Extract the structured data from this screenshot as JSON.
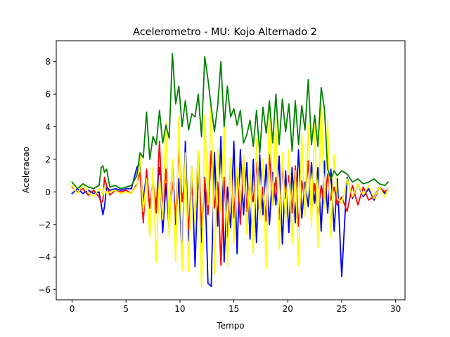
{
  "chart_data": {
    "type": "line",
    "title": "Acelerometro - MU: Kojo Alternado 2",
    "xlabel": "Tempo",
    "ylabel": "Aceleracao",
    "xlim": [
      -1.47,
      30.87
    ],
    "ylim": [
      -6.62,
      9.28
    ],
    "xticks": [
      "0",
      "5",
      "10",
      "15",
      "20",
      "25",
      "30"
    ],
    "yticks": [
      "−6",
      "−4",
      "−2",
      "0",
      "2",
      "4",
      "6",
      "8"
    ],
    "grid": false,
    "legend": "none",
    "series": [
      {
        "color": "#0000ff",
        "x": [
          0,
          0.5,
          1,
          1.5,
          2,
          2.5,
          2.7,
          2.85,
          3,
          3.2,
          3.5,
          4,
          4.5,
          5,
          5.5,
          6,
          6.3,
          6.6,
          6.9,
          7.2,
          7.5,
          7.8,
          8.1,
          8.4,
          8.7,
          9.0,
          9.3,
          9.6,
          9.9,
          10.2,
          10.5,
          10.8,
          11.1,
          11.4,
          11.7,
          12.0,
          12.3,
          12.6,
          12.9,
          13.2,
          13.5,
          13.8,
          14.1,
          14.4,
          14.7,
          15.0,
          15.3,
          15.6,
          15.9,
          16.2,
          16.5,
          16.8,
          17.1,
          17.4,
          17.7,
          18.0,
          18.3,
          18.6,
          18.9,
          19.2,
          19.5,
          19.8,
          20.1,
          20.4,
          20.7,
          21.0,
          21.3,
          21.6,
          21.9,
          22.2,
          22.5,
          22.8,
          23.1,
          23.4,
          23.7,
          24.0,
          24.3,
          24.6,
          25.0,
          25.5,
          26,
          26.5,
          27,
          27.5,
          28,
          28.5,
          29,
          29.3
        ],
        "y": [
          -0.1,
          0.2,
          -0.1,
          0.1,
          -0.1,
          0.0,
          -0.8,
          -1.4,
          -0.9,
          0.3,
          0.1,
          0.2,
          0.1,
          0.2,
          0.2,
          1.5,
          1.8,
          -0.6,
          1.2,
          -1.0,
          0.6,
          -0.9,
          1.5,
          -2.5,
          0.5,
          -2.3,
          1.9,
          -2.0,
          0.8,
          -4.2,
          3.1,
          -3.0,
          1.6,
          -4.6,
          1.3,
          -3.1,
          0.9,
          -5.6,
          -5.8,
          2.4,
          -2.1,
          3.4,
          -4.3,
          0.3,
          -2.2,
          3.1,
          -3.8,
          2.6,
          -1.4,
          1.8,
          -2.9,
          2.0,
          -3.1,
          2.3,
          -1.4,
          1.7,
          -2.0,
          1.2,
          -0.8,
          2.2,
          -3.2,
          1.3,
          -2.5,
          1.5,
          -1.9,
          2.6,
          -1.6,
          0.6,
          -0.9,
          1.8,
          -0.7,
          1.5,
          -2.4,
          1.9,
          -1.3,
          1.4,
          -2.4,
          0.8,
          -5.2,
          0.9,
          -0.4,
          0.5,
          -0.3,
          0.2,
          -0.5,
          0.3,
          -0.1,
          0.2
        ]
      },
      {
        "color": "#ff0000",
        "x": [
          0,
          0.5,
          1,
          1.5,
          2,
          2.5,
          2.7,
          2.85,
          3,
          3.2,
          3.5,
          4,
          4.5,
          5,
          5.5,
          6,
          6.3,
          6.6,
          6.9,
          7.2,
          7.5,
          7.8,
          8.1,
          8.4,
          8.7,
          9.0,
          9.3,
          9.6,
          9.9,
          10.2,
          10.5,
          10.8,
          11.1,
          11.4,
          11.7,
          12.0,
          12.3,
          12.6,
          12.9,
          13.2,
          13.5,
          13.8,
          14.1,
          14.4,
          14.7,
          15.0,
          15.3,
          15.6,
          15.9,
          16.2,
          16.5,
          16.8,
          17.1,
          17.4,
          17.7,
          18.0,
          18.3,
          18.6,
          18.9,
          19.2,
          19.5,
          19.8,
          20.1,
          20.4,
          20.7,
          21.0,
          21.3,
          21.6,
          21.9,
          22.2,
          22.5,
          22.8,
          23.1,
          23.4,
          23.7,
          24.0,
          24.3,
          24.6,
          25.0,
          25.5,
          26,
          26.5,
          27,
          27.5,
          28,
          28.5,
          29,
          29.3
        ],
        "y": [
          0.3,
          0.0,
          0.2,
          -0.2,
          0.1,
          -0.3,
          -0.7,
          -0.5,
          0.9,
          0.4,
          -0.2,
          0.1,
          0.0,
          0.1,
          -0.1,
          0.5,
          1.2,
          -1.9,
          1.4,
          -1.0,
          0.8,
          -1.3,
          3.1,
          -1.2,
          1.4,
          -1.8,
          0.6,
          -1.6,
          2.6,
          -0.6,
          1.1,
          -2.3,
          0.4,
          -1.6,
          2.5,
          -2.1,
          0.8,
          -1.4,
          2.5,
          -1.0,
          0.6,
          -4.5,
          0.9,
          -2.8,
          1.9,
          -1.6,
          1.4,
          -2.0,
          2.2,
          -1.2,
          0.4,
          -0.6,
          1.8,
          -1.5,
          0.3,
          -1.8,
          2.3,
          -0.8,
          0.9,
          -1.7,
          1.4,
          -0.4,
          1.0,
          -1.3,
          1.6,
          -2.1,
          0.7,
          -0.6,
          1.9,
          -1.2,
          0.5,
          -1.4,
          0.4,
          -0.9,
          1.1,
          -0.5,
          0.3,
          -0.8,
          -0.3,
          -1.2,
          0.4,
          -0.8,
          0.3,
          -0.5,
          -0.3,
          0.3,
          0.0,
          0.2
        ]
      },
      {
        "color": "#ffff00",
        "x": [
          0,
          0.5,
          1,
          1.5,
          2,
          2.5,
          2.7,
          2.85,
          3,
          3.2,
          3.5,
          4,
          4.5,
          5,
          5.5,
          6,
          6.3,
          6.6,
          6.9,
          7.2,
          7.5,
          7.8,
          8.1,
          8.4,
          8.7,
          9.0,
          9.3,
          9.6,
          9.9,
          10.2,
          10.5,
          10.8,
          11.1,
          11.4,
          11.7,
          12.0,
          12.3,
          12.6,
          12.9,
          13.2,
          13.5,
          13.8,
          14.1,
          14.4,
          14.7,
          15.0,
          15.3,
          15.6,
          15.9,
          16.2,
          16.5,
          16.8,
          17.1,
          17.4,
          17.7,
          18.0,
          18.3,
          18.6,
          18.9,
          19.2,
          19.5,
          19.8,
          20.1,
          20.4,
          20.7,
          21.0,
          21.3,
          21.6,
          21.9,
          22.2,
          22.5,
          22.8,
          23.1,
          23.4,
          23.7,
          24.0,
          24.3,
          24.6,
          25.0,
          25.5,
          26,
          26.5,
          27,
          27.5,
          28,
          28.5,
          29,
          29.3
        ],
        "y": [
          0.4,
          -0.1,
          0.5,
          0.0,
          -0.3,
          0.2,
          0.1,
          -0.2,
          0.3,
          -0.1,
          0.0,
          0.1,
          -0.1,
          0.0,
          -0.1,
          0.4,
          2.3,
          -1.2,
          0.8,
          -2.8,
          1.5,
          -4.3,
          1.0,
          -1.7,
          4.3,
          -2.8,
          2.0,
          -4.3,
          4.6,
          -4.8,
          2.4,
          -4.9,
          1.6,
          -1.9,
          2.5,
          -5.8,
          4.7,
          -0.8,
          5.6,
          -5.0,
          2.7,
          -1.2,
          4.2,
          -4.6,
          2.1,
          -3.2,
          1.6,
          -0.6,
          2.3,
          -2.6,
          1.4,
          -3.8,
          3.3,
          -1.7,
          2.0,
          -4.7,
          5.3,
          -0.8,
          4.5,
          -3.5,
          2.4,
          -1.9,
          2.6,
          -3.2,
          1.3,
          -4.5,
          3.6,
          -1.5,
          4.1,
          -2.2,
          4.6,
          -3.4,
          5.9,
          -1.0,
          4.4,
          -2.8,
          2.3,
          -0.4,
          -0.7,
          0.8,
          -0.3,
          0.5,
          -0.2,
          0.4,
          -0.4,
          0.3,
          -0.3,
          0.2
        ]
      },
      {
        "color": "#008000",
        "x": [
          0,
          0.5,
          1,
          1.5,
          2,
          2.5,
          2.7,
          2.85,
          3,
          3.2,
          3.5,
          4,
          4.5,
          5,
          5.5,
          6,
          6.3,
          6.6,
          6.9,
          7.2,
          7.5,
          7.8,
          8.1,
          8.4,
          8.7,
          9.0,
          9.3,
          9.6,
          9.9,
          10.2,
          10.5,
          10.8,
          11.1,
          11.4,
          11.7,
          12.0,
          12.3,
          12.6,
          12.9,
          13.2,
          13.5,
          13.8,
          14.1,
          14.4,
          14.7,
          15.0,
          15.3,
          15.6,
          15.9,
          16.2,
          16.5,
          16.8,
          17.1,
          17.4,
          17.7,
          18.0,
          18.3,
          18.6,
          18.9,
          19.2,
          19.5,
          19.8,
          20.1,
          20.4,
          20.7,
          21.0,
          21.3,
          21.6,
          21.9,
          22.2,
          22.5,
          22.8,
          23.1,
          23.4,
          23.7,
          24.0,
          24.3,
          24.6,
          25.0,
          25.5,
          26,
          26.5,
          27,
          27.5,
          28,
          28.5,
          29,
          29.3
        ],
        "y": [
          0.6,
          0.2,
          0.5,
          0.3,
          0.2,
          0.4,
          1.5,
          1.6,
          1.2,
          1.4,
          0.3,
          0.4,
          0.2,
          0.3,
          0.4,
          1.0,
          2.4,
          2.1,
          4.9,
          2.0,
          3.4,
          2.9,
          5.0,
          3.0,
          4.1,
          3.3,
          8.5,
          5.4,
          6.5,
          4.0,
          5.6,
          3.8,
          4.8,
          4.6,
          6.0,
          3.4,
          8.3,
          6.9,
          5.2,
          3.7,
          5.3,
          8.0,
          4.0,
          6.5,
          4.6,
          5.1,
          4.1,
          5.0,
          3.0,
          3.5,
          4.4,
          2.8,
          5.0,
          2.4,
          5.2,
          3.6,
          5.6,
          3.0,
          6.0,
          2.9,
          5.7,
          3.7,
          5.4,
          2.5,
          5.6,
          2.9,
          5.3,
          3.8,
          6.9,
          2.9,
          4.7,
          2.8,
          6.4,
          5.1,
          1.4,
          0.8,
          1.3,
          1.0,
          1.3,
          1.1,
          0.6,
          0.8,
          0.5,
          0.6,
          0.8,
          0.5,
          0.4,
          0.6
        ]
      }
    ]
  }
}
